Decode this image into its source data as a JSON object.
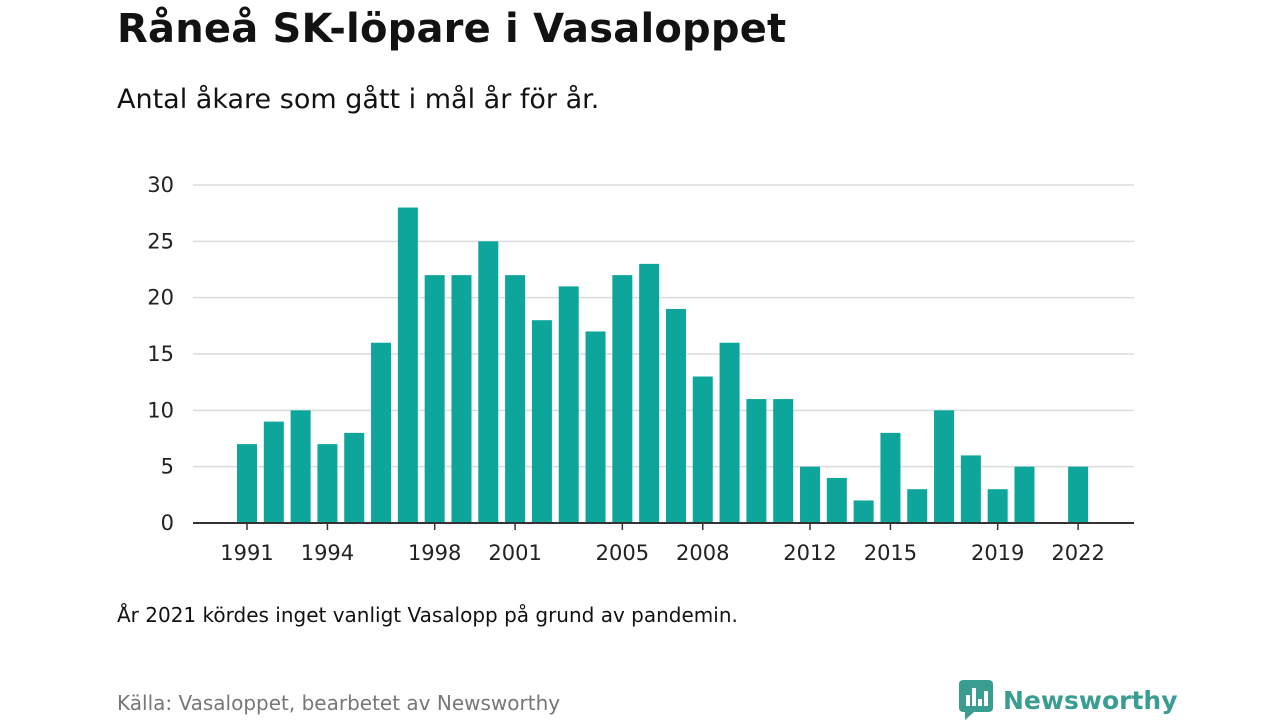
{
  "title": "Råneå SK-löpare i Vasaloppet",
  "subtitle": "Antal åkare som gått i mål år för år.",
  "note": "År 2021 kördes inget vanligt Vasalopp på grund av pandemin.",
  "source": "Källa: Vasaloppet, bearbetet av Newsworthy",
  "brand": {
    "name": "Newsworthy",
    "icon": "newsworthy-logo-icon",
    "color": "#3a9d91"
  },
  "chart_data": {
    "type": "bar",
    "title": "",
    "xlabel": "",
    "ylabel": "",
    "ylim": [
      0,
      30
    ],
    "yticks": [
      "0",
      "5",
      "10",
      "15",
      "20",
      "25",
      "30"
    ],
    "xtick_labels": [
      "1991",
      "1994",
      "1998",
      "2001",
      "2005",
      "2008",
      "2012",
      "2015",
      "2019",
      "2022"
    ],
    "grid": true,
    "bar_color": "#0ea59a",
    "categories": [
      "1991",
      "1992",
      "1993",
      "1994",
      "1995",
      "1996",
      "1997",
      "1998",
      "1999",
      "2000",
      "2001",
      "2002",
      "2003",
      "2004",
      "2005",
      "2006",
      "2007",
      "2008",
      "2009",
      "2010",
      "2011",
      "2012",
      "2013",
      "2014",
      "2015",
      "2016",
      "2017",
      "2018",
      "2019",
      "2020",
      "2021",
      "2022"
    ],
    "values": [
      7,
      9,
      10,
      7,
      8,
      16,
      28,
      22,
      22,
      25,
      22,
      18,
      21,
      17,
      22,
      23,
      19,
      13,
      16,
      11,
      11,
      5,
      4,
      2,
      8,
      3,
      10,
      6,
      3,
      5,
      null,
      5
    ]
  }
}
